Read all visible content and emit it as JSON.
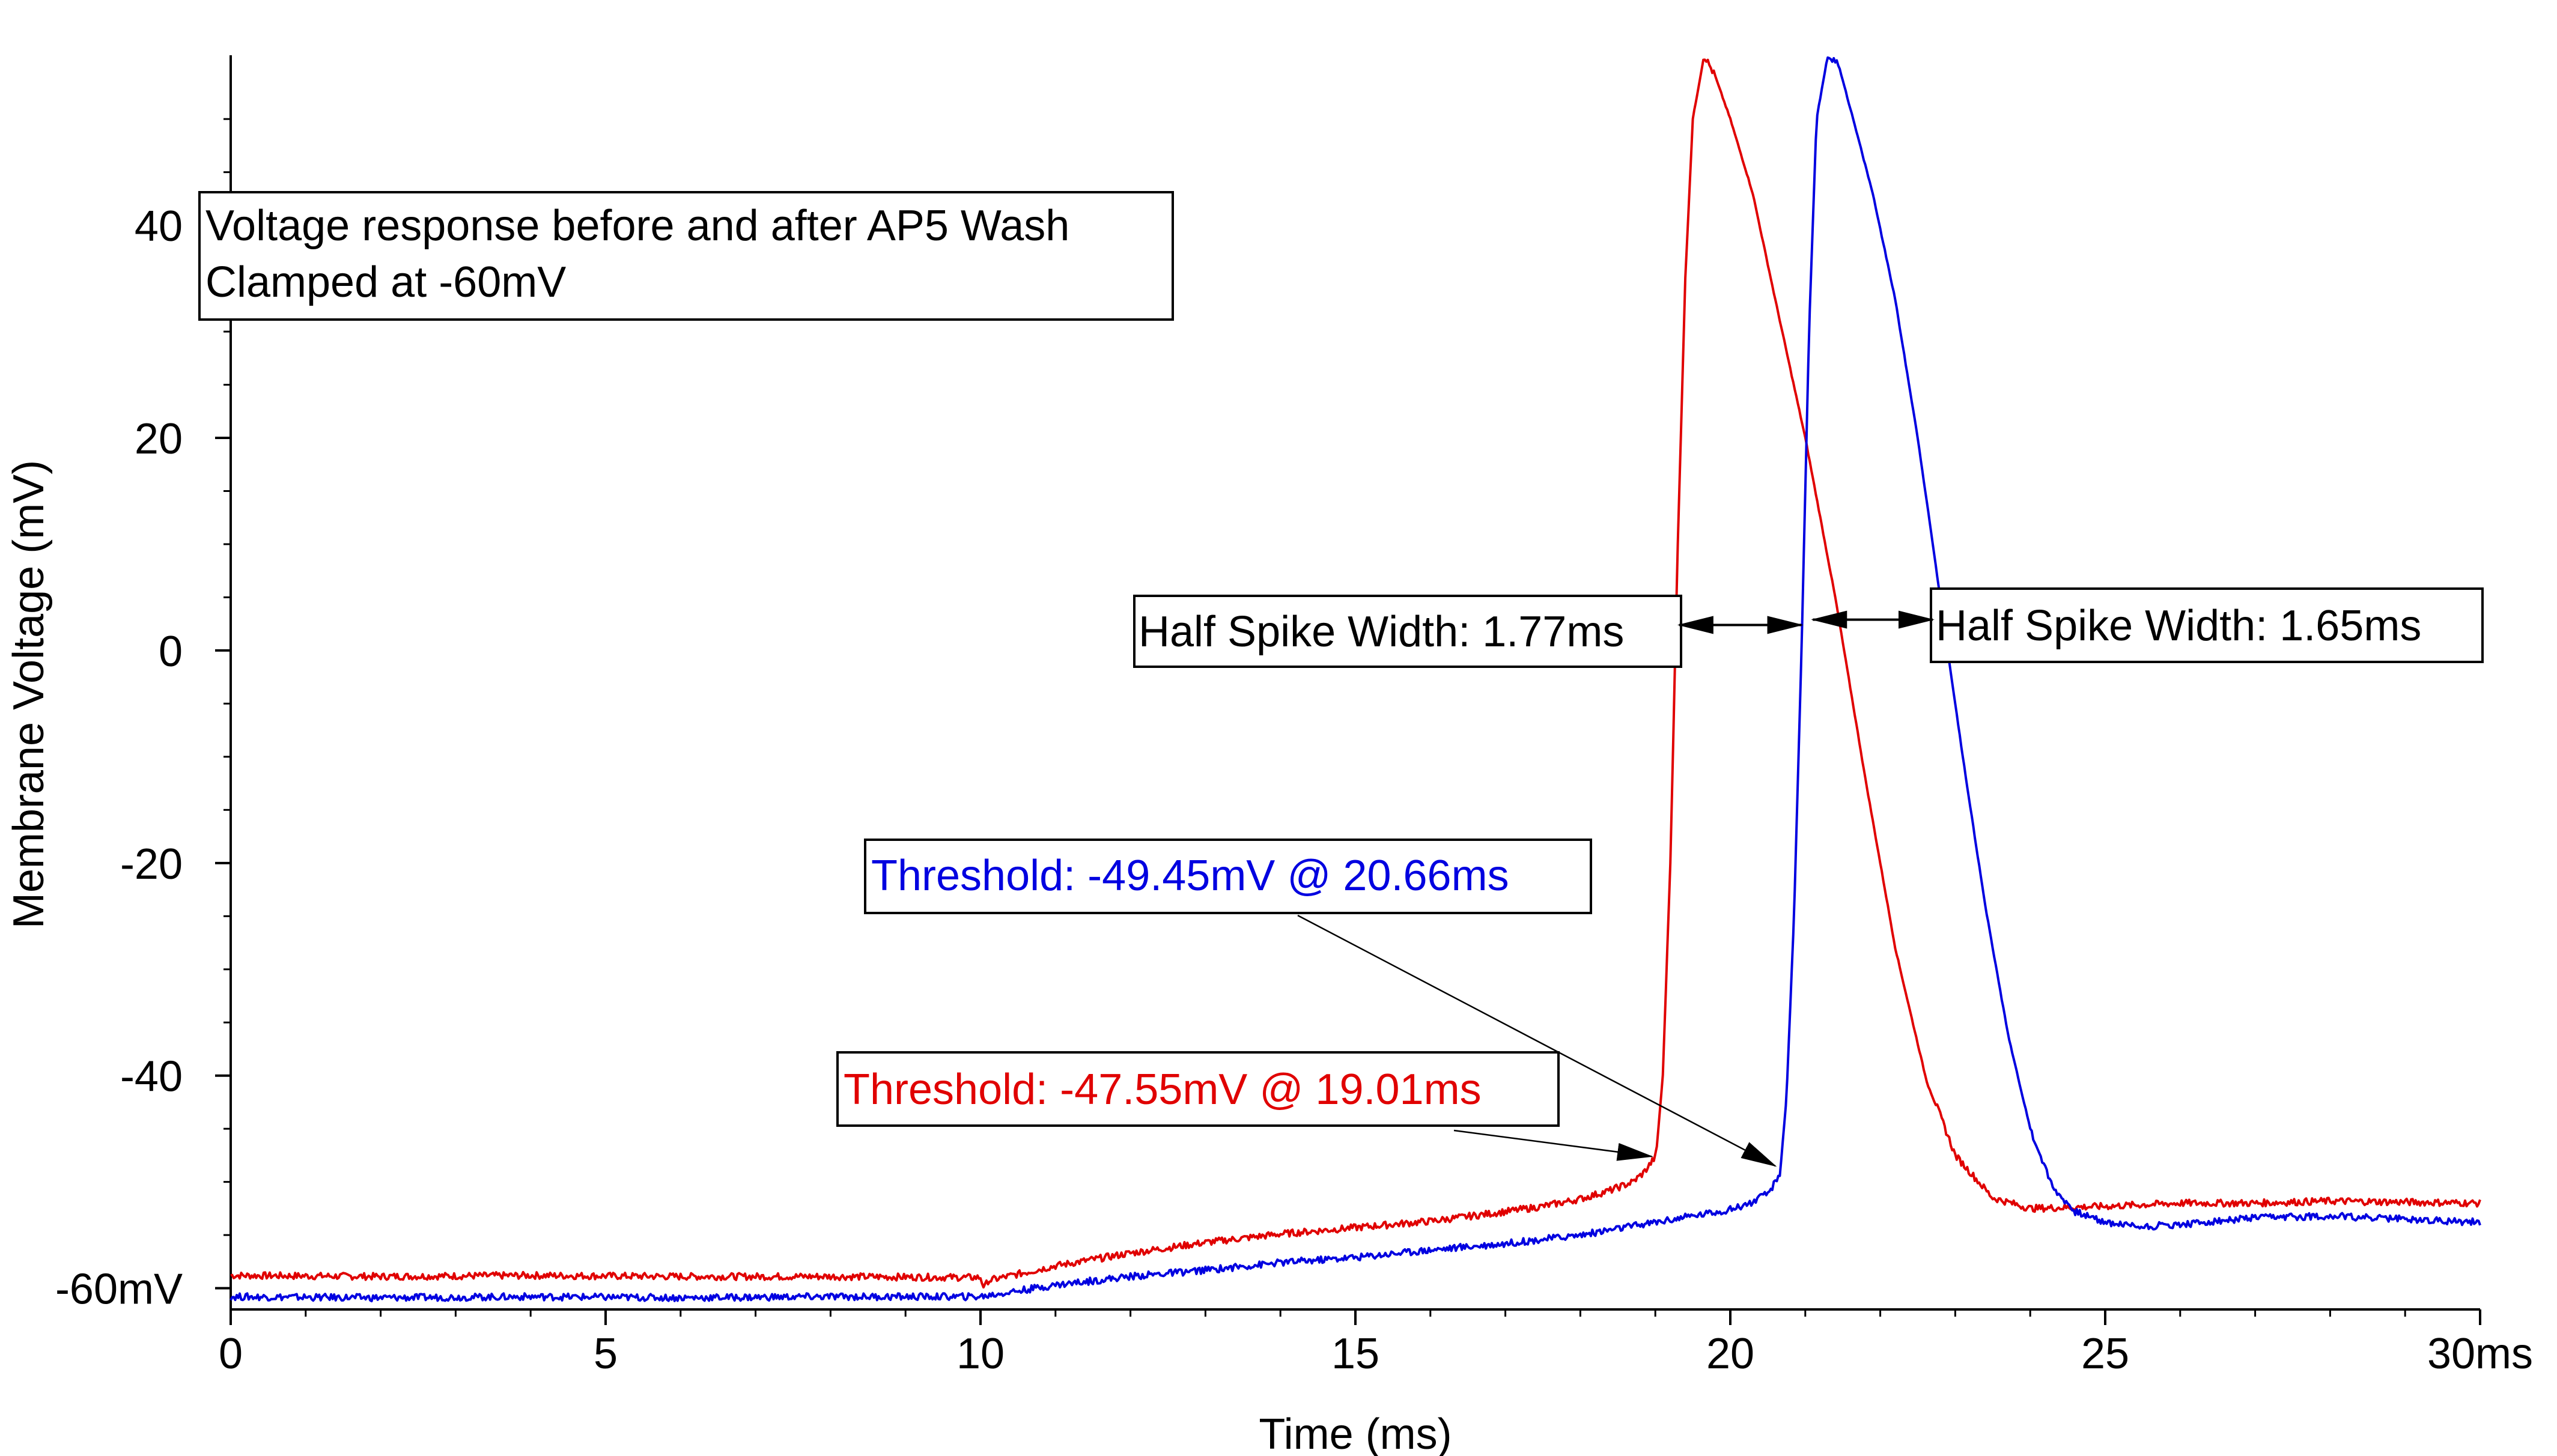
{
  "chart_data": {
    "type": "line",
    "xlabel": "Time (ms)",
    "ylabel": "Membrane Voltage (mV)",
    "xlim": [
      0,
      30
    ],
    "ylim": [
      -62,
      56
    ],
    "grid": false,
    "x_ticks": [
      0,
      5,
      10,
      15,
      20,
      25,
      30
    ],
    "x_tick_labels": [
      "0",
      "5",
      "10",
      "15",
      "20",
      "25",
      "30ms"
    ],
    "y_ticks": [
      -60,
      -40,
      -20,
      0,
      20,
      40
    ],
    "y_tick_labels": [
      "-60mV",
      "-40",
      "-20",
      "0",
      "20",
      "40"
    ],
    "series": [
      {
        "color": "#e00000",
        "x": [
          0,
          2,
          4,
          6,
          8,
          10,
          10.05,
          10.1,
          11,
          12,
          13,
          14,
          15,
          16,
          17,
          17.5,
          18,
          18.4,
          18.7,
          18.85,
          19.01,
          19.1,
          19.2,
          19.3,
          19.4,
          19.5,
          19.65,
          19.8,
          20,
          20.3,
          20.6,
          21,
          21.4,
          21.8,
          22.2,
          22.6,
          23,
          23.5,
          24,
          25,
          26,
          27,
          28,
          29,
          30
        ],
        "y": [
          -58.8,
          -58.9,
          -58.8,
          -58.9,
          -58.9,
          -59,
          -60,
          -59.3,
          -57.9,
          -56.7,
          -55.7,
          -54.9,
          -54.3,
          -53.7,
          -52.8,
          -52.3,
          -51.6,
          -50.8,
          -50,
          -49.1,
          -47.55,
          -40,
          -20,
          10,
          35,
          50,
          56,
          54,
          50,
          43,
          33,
          20,
          5,
          -12,
          -28,
          -40,
          -47.5,
          -51.5,
          -52.5,
          -52.3,
          -52,
          -52,
          -51.8,
          -51.9,
          -52
        ]
      },
      {
        "color": "#0000e0",
        "x": [
          0,
          2,
          4,
          6,
          8,
          10,
          11,
          12,
          13,
          14,
          15,
          16,
          17,
          18,
          19,
          19.5,
          20,
          20.3,
          20.5,
          20.66,
          20.75,
          20.85,
          20.95,
          21.05,
          21.15,
          21.3,
          21.45,
          21.6,
          21.9,
          22.2,
          22.5,
          22.8,
          23.1,
          23.4,
          23.7,
          24,
          24.3,
          24.6,
          25,
          25.5,
          26,
          27,
          28,
          29,
          30
        ],
        "y": [
          -60.8,
          -60.9,
          -60.8,
          -60.9,
          -60.8,
          -60.8,
          -59.7,
          -58.9,
          -58.3,
          -57.6,
          -57.1,
          -56.4,
          -55.8,
          -55,
          -53.8,
          -53.2,
          -52.6,
          -51.9,
          -51.1,
          -49.45,
          -42,
          -25,
          0,
          30,
          50,
          56,
          55,
          51,
          43,
          33,
          20,
          5,
          -10,
          -24,
          -36,
          -45,
          -50.5,
          -52.8,
          -53.8,
          -54.2,
          -54,
          -53.4,
          -53.2,
          -53.5,
          -53.8
        ]
      }
    ],
    "annotations": [
      {
        "text": "Voltage response before and after AP5 Wash",
        "text2": "Clamped at -60mV"
      },
      {
        "text": "Half Spike Width: 1.77ms",
        "from": [
          19.35,
          2.4
        ],
        "to": [
          20.95,
          2.4
        ]
      },
      {
        "text": "Half Spike Width: 1.65ms",
        "from": [
          21.1,
          2.9
        ],
        "to": [
          22.7,
          2.9
        ]
      },
      {
        "text": "Threshold: -49.45mV @ 20.66ms",
        "color": "#0000e0",
        "target": [
          20.6,
          -48.5
        ]
      },
      {
        "text": "Threshold: -47.55mV @ 19.01ms",
        "color": "#e00000",
        "target": [
          18.95,
          -47.6
        ]
      }
    ]
  }
}
